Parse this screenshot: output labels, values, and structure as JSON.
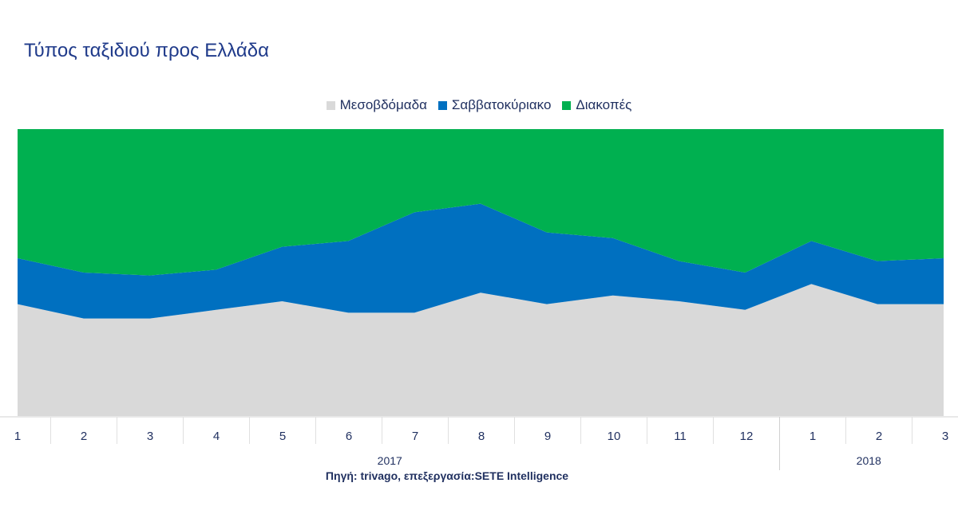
{
  "chart_data": {
    "type": "area",
    "stacked": true,
    "percent_stacked": true,
    "title": "Τύπος ταξιδιού προς Ελλάδα",
    "categories": [
      "1",
      "2",
      "3",
      "4",
      "5",
      "6",
      "7",
      "8",
      "9",
      "10",
      "11",
      "12",
      "1",
      "2",
      "3"
    ],
    "category_groups": [
      {
        "label": "2017",
        "count": 12
      },
      {
        "label": "2018",
        "count": 3
      }
    ],
    "ylim": [
      0,
      100
    ],
    "legend_position": "top",
    "series": [
      {
        "name": "Μεσοβδόμαδα",
        "color": "#d9d9d9",
        "values": [
          39,
          34,
          34,
          37,
          40,
          36,
          36,
          43,
          39,
          42,
          40,
          37,
          46,
          39,
          39
        ]
      },
      {
        "name": "Σαββατοκύριακο",
        "color": "#0070c0",
        "values": [
          16,
          16,
          15,
          14,
          19,
          25,
          35,
          31,
          25,
          20,
          14,
          13,
          15,
          15,
          16
        ]
      },
      {
        "name": "Διακοπές",
        "color": "#00b050",
        "values": [
          45,
          50,
          51,
          49,
          41,
          39,
          29,
          26,
          36,
          38,
          46,
          50,
          39,
          46,
          45
        ]
      }
    ],
    "source": "Πηγή: trivago, επεξεργασία:SETE Intelligence"
  }
}
